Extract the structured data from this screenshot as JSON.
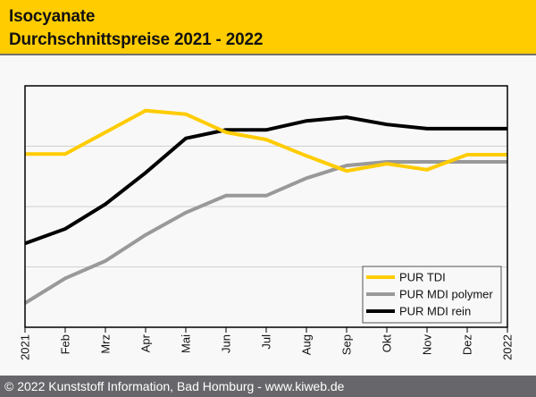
{
  "header": {
    "title_line1": "Isocyanate",
    "title_line2": "Durchschnittspreise 2021 - 2022"
  },
  "footer": {
    "text": "© 2022 Kunststoff Information, Bad Homburg - www.kiweb.de"
  },
  "colors": {
    "header_bg": "#ffcc00",
    "footer_bg": "#67676b",
    "tdi": "#ffcc00",
    "mdi_polymer": "#999999",
    "mdi_rein": "#000000",
    "grid": "#d0d0d0"
  },
  "chart_data": {
    "type": "line",
    "title": "Isocyanate Durchschnittspreise 2021 - 2022",
    "xlabel": "",
    "ylabel": "",
    "y_axis_note": "no y tick labels shown; values are relative (gridline units, 0 = bottom axis, 4 = top)",
    "ylim": [
      0,
      4
    ],
    "grid": true,
    "legend_position": "bottom-right",
    "categories": [
      "2021",
      "Feb",
      "Mrz",
      "Apr",
      "Mai",
      "Jun",
      "Jul",
      "Aug",
      "Sep",
      "Okt",
      "Nov",
      "Dez",
      "2022"
    ],
    "series": [
      {
        "name": "PUR TDI",
        "color": "#ffcc00",
        "values": [
          2.87,
          2.87,
          3.23,
          3.59,
          3.53,
          3.23,
          3.11,
          2.84,
          2.59,
          2.71,
          2.61,
          2.86,
          2.86
        ]
      },
      {
        "name": "PUR MDI polymer",
        "color": "#999999",
        "values": [
          0.4,
          0.81,
          1.1,
          1.53,
          1.9,
          2.18,
          2.18,
          2.47,
          2.68,
          2.74,
          2.74,
          2.74,
          2.74
        ]
      },
      {
        "name": "PUR MDI rein",
        "color": "#000000",
        "values": [
          1.39,
          1.63,
          2.04,
          2.56,
          3.13,
          3.27,
          3.27,
          3.42,
          3.48,
          3.36,
          3.29,
          3.29,
          3.29
        ]
      }
    ]
  }
}
